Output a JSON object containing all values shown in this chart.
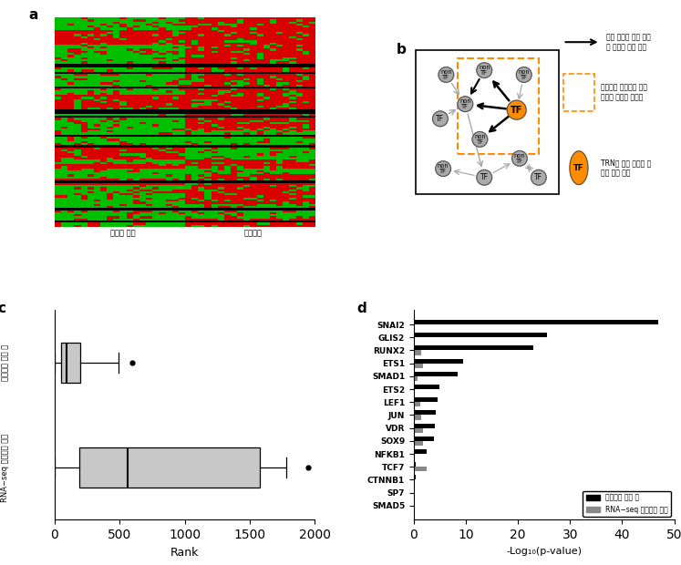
{
  "heatmap_label1": "중간엽 세포",
  "heatmap_label2": "조골세포",
  "panel_a_label": "a",
  "panel_b_label": "b",
  "panel_c_label": "c",
  "panel_d_label": "d",
  "boxplot_top": {
    "whislo": 5,
    "q1": 50,
    "med": 90,
    "q3": 200,
    "whishi": 490,
    "fliers": [
      600
    ]
  },
  "boxplot_bottom": {
    "whislo": 5,
    "q1": 190,
    "med": 560,
    "q3": 1580,
    "whishi": 1780,
    "fliers": [
      1950
    ]
  },
  "rank_xlabel": "Rank",
  "rank_xlim": [
    0,
    2000
  ],
  "genes": [
    "SNAI2",
    "GLIS2",
    "RUNX2",
    "ETS1",
    "SMAD1",
    "ETS2",
    "LEF1",
    "JUN",
    "VDR",
    "SOX9",
    "NFKB1",
    "TCF7",
    "CTNNB1",
    "SP7",
    "SMAD5"
  ],
  "black_values": [
    47,
    25.5,
    23,
    9.5,
    8.5,
    5.0,
    4.5,
    4.2,
    4.0,
    3.8,
    2.4,
    0.4,
    0.3,
    0.15,
    0.1
  ],
  "gray_values": [
    0.2,
    0.15,
    1.5,
    1.8,
    0.8,
    0.15,
    1.2,
    1.5,
    1.8,
    1.8,
    0.15,
    2.5,
    0.15,
    0.05,
    0.05
  ],
  "bar_xlim": [
    0,
    50
  ],
  "bar_xlabel": "-Log₁₀(p-value)",
  "legend_black": "네트워크 적용 시",
  "legend_gray": "RNA−seq 데이터만 사용",
  "ylabel_top": "네트워크 적용 시",
  "ylabel_bottom": "RNA−seq 데이터만 사용",
  "network_annot1": "전사 인자와 타깃 유전\n자 사이의 조절 관계",
  "network_annot2": "조골세포 분화에서 발현\n변화를 보이는 유전자",
  "network_annot3": "TRN을 통해 밝혁진 중\n요한 전사 인자"
}
